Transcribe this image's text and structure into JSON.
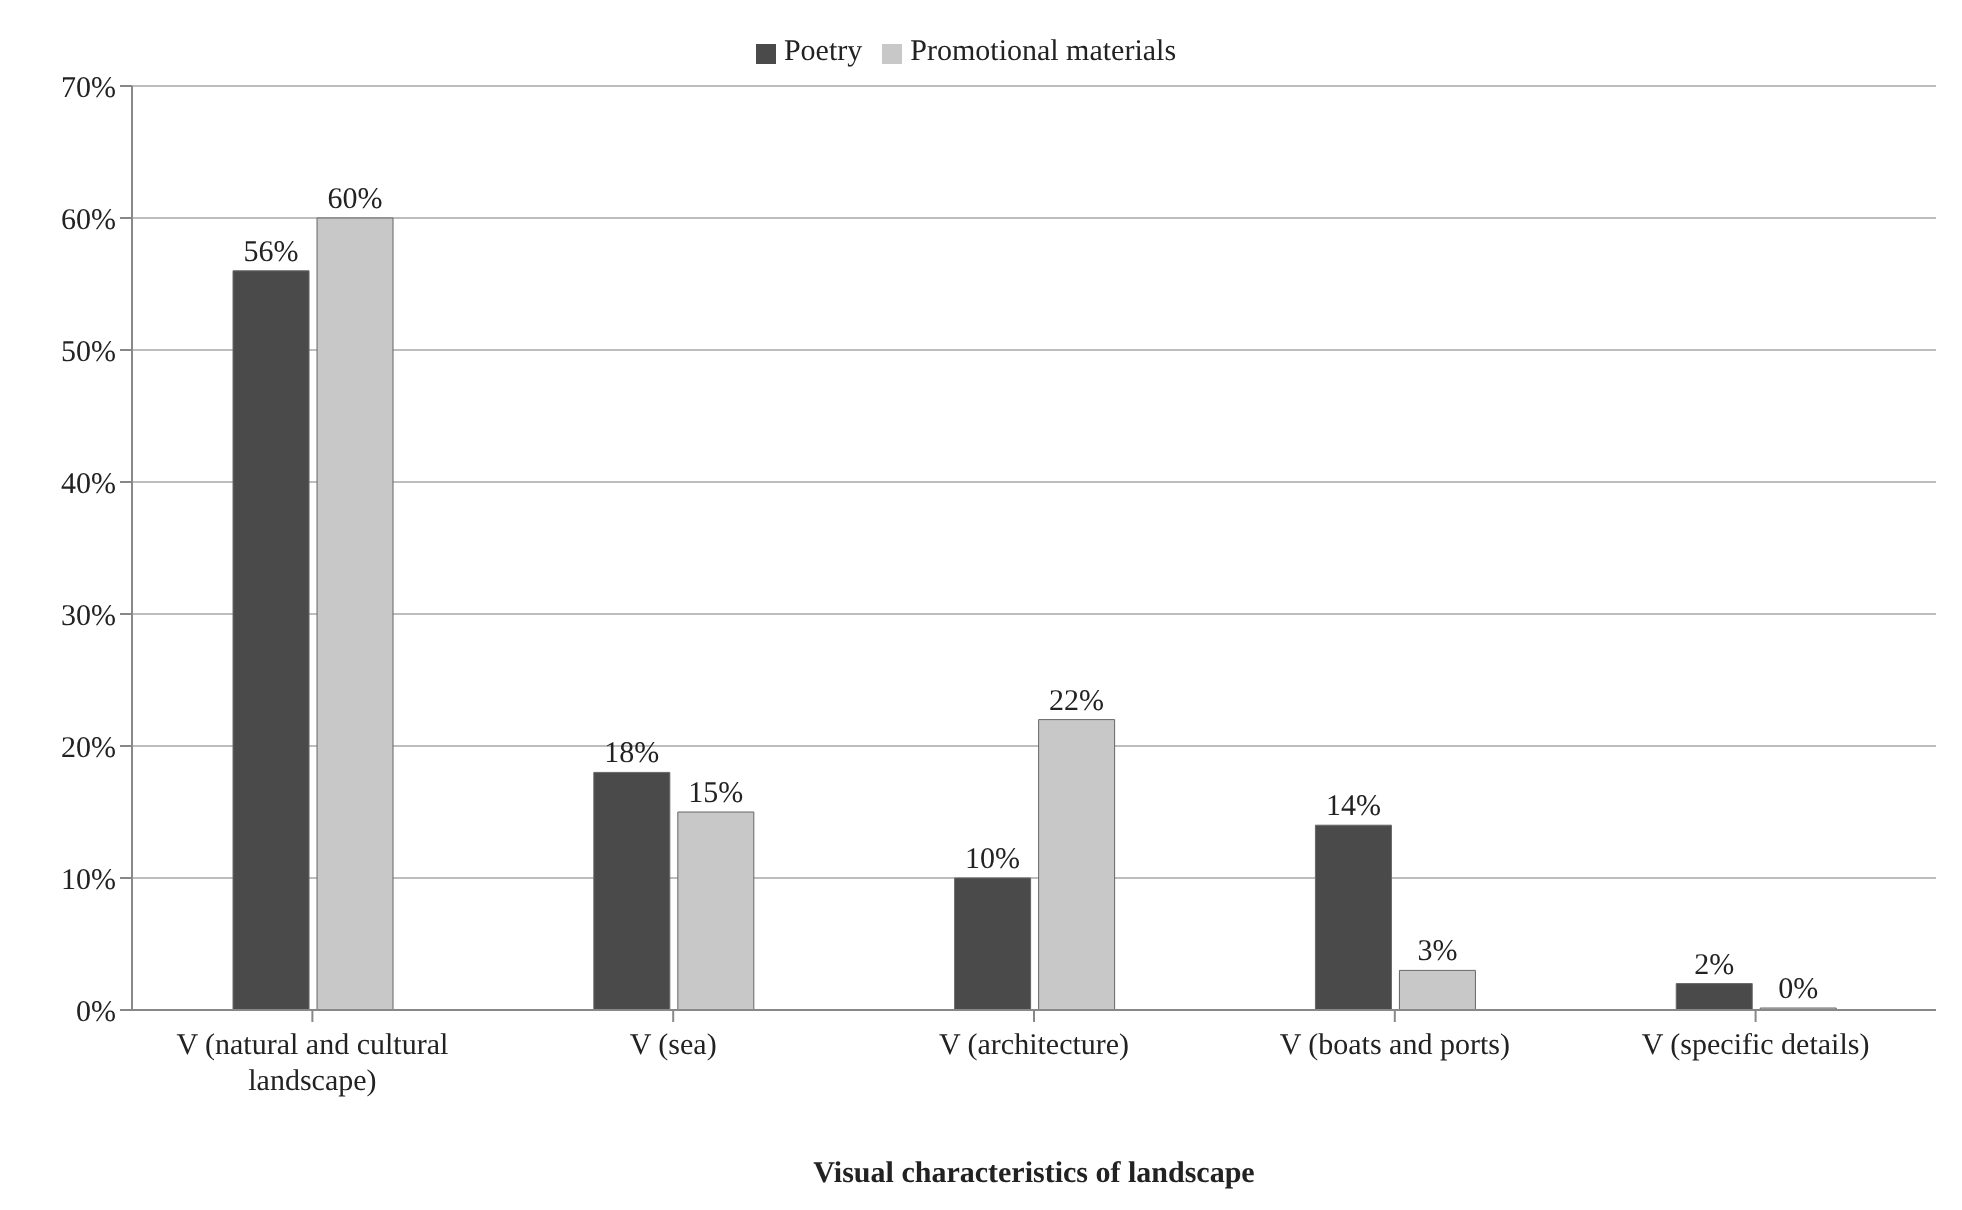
{
  "chart_data": {
    "type": "bar",
    "xlabel": "Visual characteristics of landscape",
    "categories": [
      "V (natural and cultural landscape)",
      "V (sea)",
      "V (architecture)",
      "V (boats and ports)",
      "V (specific details)"
    ],
    "series": [
      {
        "name": "Poetry",
        "color": "#4a4a4a",
        "values": [
          56,
          18,
          10,
          14,
          2
        ],
        "value_labels": [
          "56%",
          "18%",
          "10%",
          "14%",
          "2%"
        ]
      },
      {
        "name": "Promotional materials",
        "color": "#c8c8c8",
        "values": [
          60,
          15,
          22,
          3,
          0
        ],
        "value_labels": [
          "60%",
          "15%",
          "22%",
          "3%",
          "0%"
        ]
      }
    ],
    "ylim": [
      0,
      70
    ],
    "yticks": [
      {
        "value": 0,
        "label": "0%"
      },
      {
        "value": 10,
        "label": "10%"
      },
      {
        "value": 20,
        "label": "20%"
      },
      {
        "value": 30,
        "label": "30%"
      },
      {
        "value": 40,
        "label": "40%"
      },
      {
        "value": 50,
        "label": "50%"
      },
      {
        "value": 60,
        "label": "60%"
      },
      {
        "value": 70,
        "label": "70%"
      }
    ],
    "grid": "y",
    "legend": "top"
  }
}
